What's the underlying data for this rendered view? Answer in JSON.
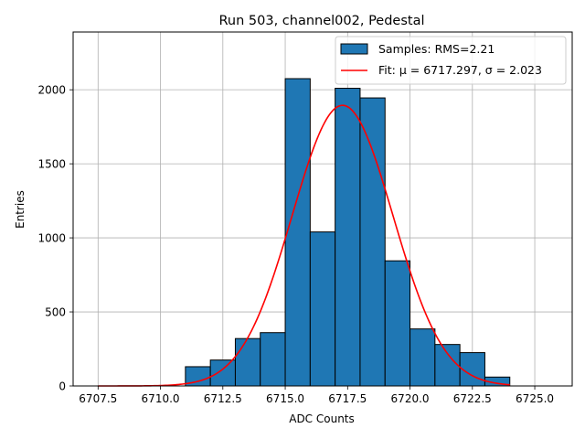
{
  "chart_data": {
    "type": "histogram",
    "title": "Run 503, channel002, Pedestal",
    "xlabel": "ADC Counts",
    "ylabel": "Entries",
    "xlim": [
      6706.5,
      6726.5
    ],
    "ylim": [
      0,
      2390
    ],
    "xticks": [
      6707.5,
      6710.0,
      6712.5,
      6715.0,
      6717.5,
      6720.0,
      6722.5,
      6725.0
    ],
    "xtick_labels": [
      "6707.5",
      "6710.0",
      "6712.5",
      "6715.0",
      "6717.5",
      "6720.0",
      "6722.5",
      "6725.0"
    ],
    "yticks": [
      0,
      500,
      1000,
      1500,
      2000
    ],
    "ytick_labels": [
      "0",
      "500",
      "1000",
      "1500",
      "2000"
    ],
    "grid": true,
    "legend_position": "top-right",
    "bins": [
      {
        "x0": 6711,
        "x1": 6712,
        "count": 130
      },
      {
        "x0": 6712,
        "x1": 6713,
        "count": 175
      },
      {
        "x0": 6713,
        "x1": 6714,
        "count": 320
      },
      {
        "x0": 6714,
        "x1": 6715,
        "count": 360
      },
      {
        "x0": 6715,
        "x1": 6716,
        "count": 2075
      },
      {
        "x0": 6716,
        "x1": 6717,
        "count": 1040
      },
      {
        "x0": 6717,
        "x1": 6718,
        "count": 2010
      },
      {
        "x0": 6718,
        "x1": 6719,
        "count": 1945
      },
      {
        "x0": 6719,
        "x1": 6720,
        "count": 845
      },
      {
        "x0": 6720,
        "x1": 6721,
        "count": 385
      },
      {
        "x0": 6721,
        "x1": 6722,
        "count": 280
      },
      {
        "x0": 6722,
        "x1": 6723,
        "count": 225
      },
      {
        "x0": 6723,
        "x1": 6724,
        "count": 60
      }
    ],
    "fit": {
      "mu": 6717.297,
      "sigma": 2.023,
      "amplitude": 1895,
      "x_range": [
        6707.5,
        6724.0
      ]
    },
    "series": [
      {
        "name": "Samples: RMS=2.21",
        "type": "bar",
        "color": "#1f77b4"
      },
      {
        "name": "Fit: μ = 6717.297, σ = 2.023",
        "type": "line",
        "color": "#ff0000"
      }
    ]
  }
}
